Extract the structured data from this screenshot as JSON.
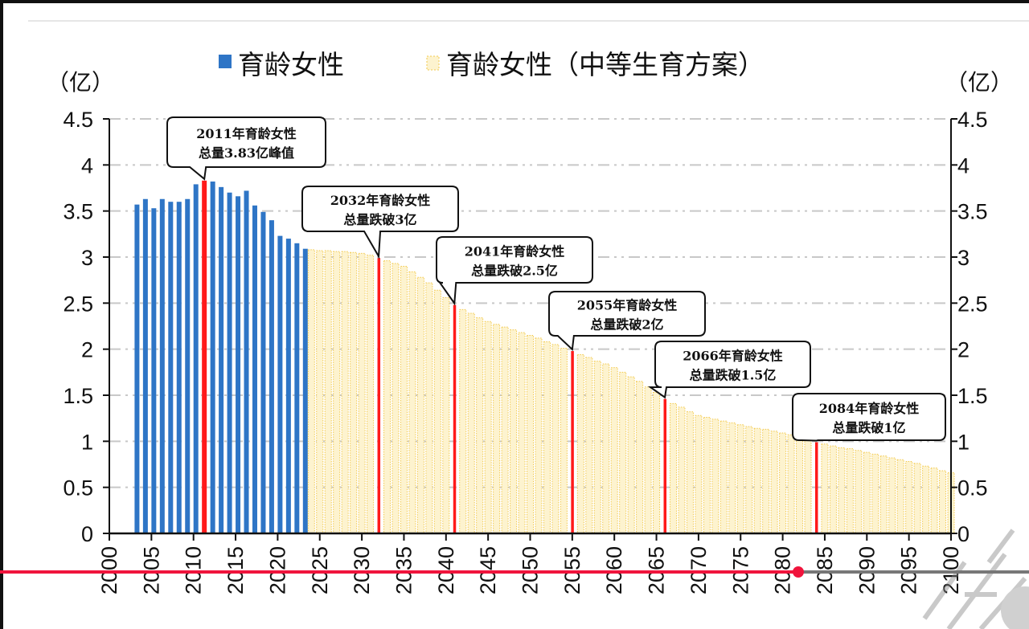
{
  "chart_data": {
    "type": "bar",
    "title": "",
    "xlabel": "",
    "ylabel_left": "（亿）",
    "ylabel_right": "（亿）",
    "xlim": [
      2000,
      2100
    ],
    "ylim": [
      0,
      4.5
    ],
    "x_ticks": [
      "2000",
      "2005",
      "2010",
      "2015",
      "2020",
      "2025",
      "2030",
      "2035",
      "2040",
      "2045",
      "2050",
      "2055",
      "2060",
      "2065",
      "2070",
      "2075",
      "2080",
      "2085",
      "2090",
      "2095",
      "2100"
    ],
    "y_ticks": [
      "0",
      "0.5",
      "1",
      "1.5",
      "2",
      "2.5",
      "3",
      "3.5",
      "4",
      "4.5"
    ],
    "grid": "horizontal dash-dot",
    "legend_position": "top",
    "colors": {
      "actual": "#2e75c6",
      "projection": "#f2c94c",
      "projection_fill": "#fdf3cf",
      "highlight": "#ff1a1a"
    },
    "series": [
      {
        "name": "育龄女性",
        "x": [
          2003,
          2004,
          2005,
          2006,
          2007,
          2008,
          2009,
          2010,
          2011,
          2012,
          2013,
          2014,
          2015,
          2016,
          2017,
          2018,
          2019,
          2020,
          2021,
          2022,
          2023
        ],
        "values": [
          3.57,
          3.63,
          3.53,
          3.63,
          3.6,
          3.6,
          3.63,
          3.79,
          3.83,
          3.82,
          3.76,
          3.7,
          3.66,
          3.72,
          3.56,
          3.49,
          3.4,
          3.23,
          3.2,
          3.15,
          3.09
        ]
      },
      {
        "name": "育龄女性（中等生育方案）",
        "x_start": 2024,
        "x_end": 2100,
        "values": [
          3.08,
          3.07,
          3.07,
          3.06,
          3.06,
          3.05,
          3.04,
          3.02,
          2.99,
          2.96,
          2.93,
          2.9,
          2.84,
          2.78,
          2.72,
          2.64,
          2.56,
          2.48,
          2.43,
          2.39,
          2.34,
          2.3,
          2.27,
          2.24,
          2.21,
          2.18,
          2.15,
          2.12,
          2.08,
          2.05,
          2.01,
          1.98,
          1.94,
          1.91,
          1.87,
          1.84,
          1.8,
          1.75,
          1.7,
          1.65,
          1.59,
          1.53,
          1.46,
          1.41,
          1.37,
          1.32,
          1.28,
          1.26,
          1.24,
          1.22,
          1.2,
          1.18,
          1.16,
          1.14,
          1.13,
          1.11,
          1.09,
          1.07,
          1.04,
          1.02,
          0.99,
          0.97,
          0.95,
          0.93,
          0.92,
          0.9,
          0.88,
          0.86,
          0.84,
          0.82,
          0.8,
          0.78,
          0.76,
          0.73,
          0.71,
          0.68,
          0.66
        ]
      }
    ],
    "highlighted_years": [
      2011,
      2032,
      2041,
      2055,
      2066,
      2084
    ],
    "annotations": [
      {
        "year": 2011,
        "line1": "2011年育龄女性",
        "line2": "总量3.83亿峰值"
      },
      {
        "year": 2032,
        "line1": "2032年育龄女性",
        "line2": "总量跌破3亿"
      },
      {
        "year": 2041,
        "line1": "2041年育龄女性",
        "line2": "总量跌破2.5亿"
      },
      {
        "year": 2055,
        "line1": "2055年育龄女性",
        "line2": "总量跌破2亿"
      },
      {
        "year": 2066,
        "line1": "2066年育龄女性",
        "line2": "总量跌破1.5亿"
      },
      {
        "year": 2084,
        "line1": "2084年育龄女性",
        "line2": "总量跌破1亿"
      }
    ]
  },
  "player": {
    "progress": 0.776
  }
}
